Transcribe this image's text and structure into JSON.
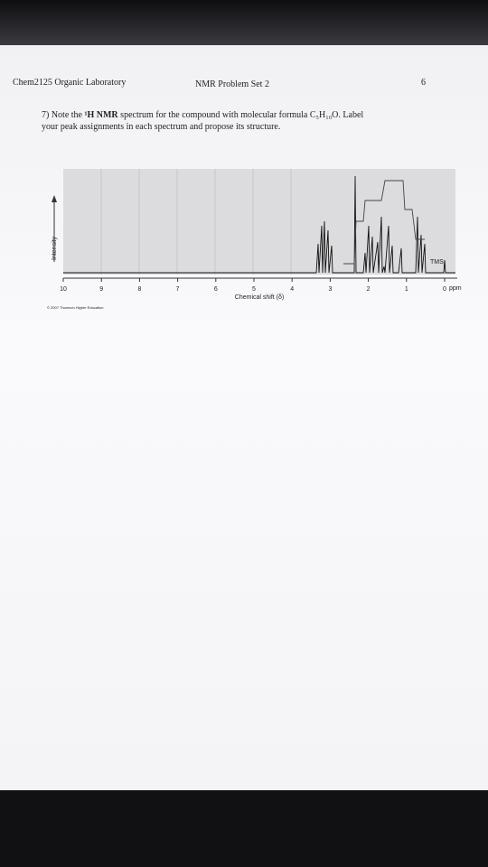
{
  "header": {
    "left": "Chem2125 Organic Laboratory",
    "center": "NMR Problem Set 2",
    "right": "6"
  },
  "question": {
    "line1": [
      "7) Note the ",
      "¹H NMR",
      " spectrum for the compound with molecular formula C₅H₁₀O. Label"
    ],
    "line2": "your peak assignments in each spectrum and propose its structure."
  },
  "figure": {
    "y_label": "Intensity",
    "x_label": "Chemical shift (δ)",
    "tms": "TMS",
    "unit": "ppm",
    "x_ticks": [
      10,
      9,
      8,
      7,
      6,
      5,
      4,
      3,
      2,
      1,
      0
    ],
    "credit": "© 2007 Thomson Higher Education"
  }
}
